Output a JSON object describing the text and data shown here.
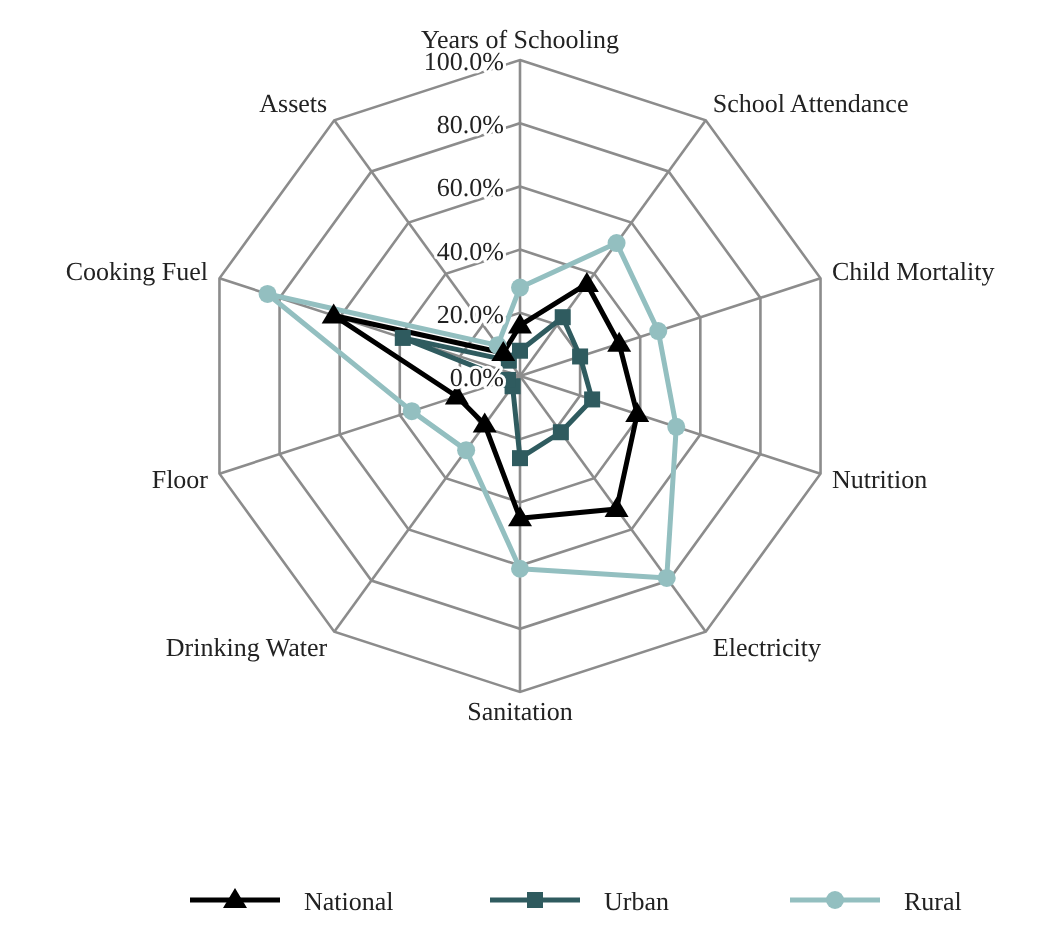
{
  "chart_data": {
    "type": "radar",
    "categories": [
      "Years of Schooling",
      "School Attendance",
      "Child Mortality",
      "Nutrition",
      "Electricity",
      "Sanitation",
      "Drinking Water",
      "Floor",
      "Cooking Fuel",
      "Assets"
    ],
    "ylim": [
      0,
      100
    ],
    "yticks": [
      {
        "value": 0,
        "label": "0.0%"
      },
      {
        "value": 20,
        "label": "20.0%"
      },
      {
        "value": 40,
        "label": "40.0%"
      },
      {
        "value": 60,
        "label": "60.0%"
      },
      {
        "value": 80,
        "label": "80.0%"
      },
      {
        "value": 100,
        "label": "100.0%"
      }
    ],
    "grid": true,
    "legend": "bottom",
    "series": [
      {
        "name": "National",
        "color": "#000000",
        "marker": "triangle",
        "values": [
          16,
          36,
          33,
          39,
          52,
          45,
          19,
          21,
          62,
          9
        ]
      },
      {
        "name": "Urban",
        "color": "#2f5b5f",
        "marker": "square",
        "values": [
          8,
          23,
          20,
          24,
          22,
          26,
          4,
          4,
          39,
          6
        ]
      },
      {
        "name": "Rural",
        "color": "#93bfc0",
        "marker": "circle",
        "values": [
          28,
          52,
          46,
          52,
          79,
          61,
          29,
          36,
          84,
          12
        ]
      }
    ]
  }
}
